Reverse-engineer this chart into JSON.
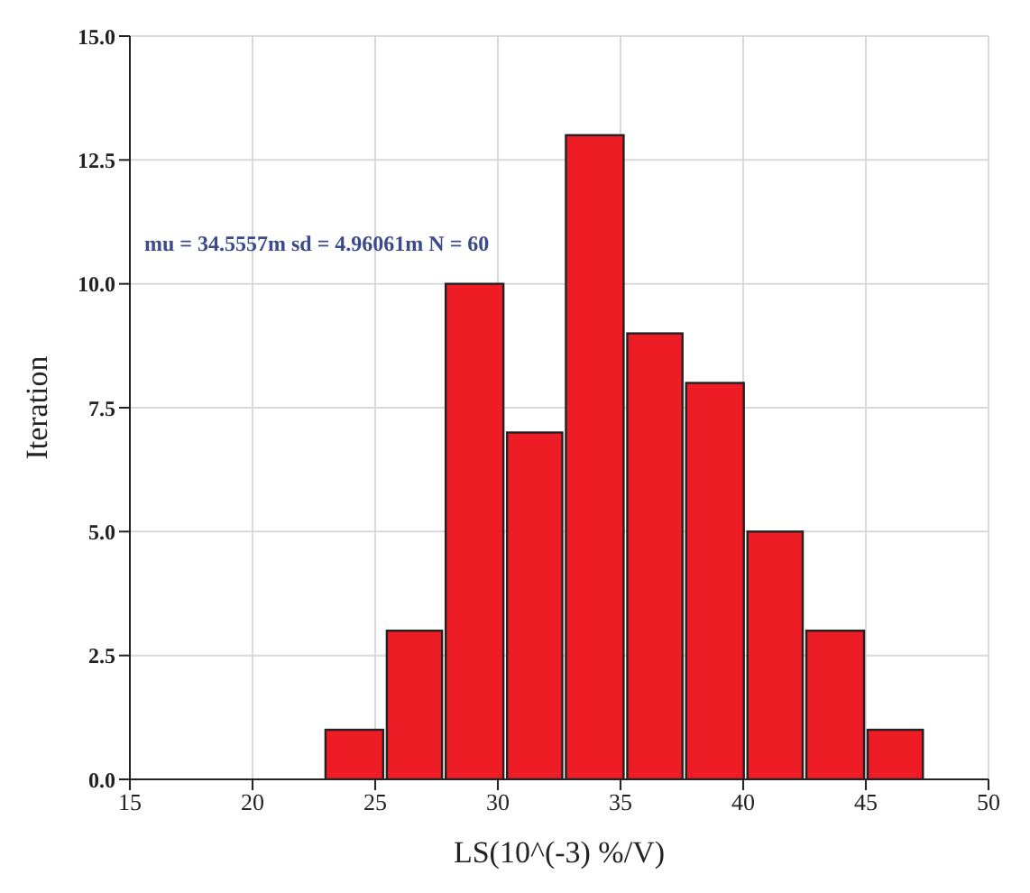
{
  "chart_data": {
    "type": "histogram",
    "xlabel": "LS(10^(-3)  %/V)",
    "ylabel": "Iteration",
    "bins": [
      22.9,
      25.4,
      27.8,
      30.3,
      32.7,
      35.2,
      37.6,
      40.1,
      42.5,
      45.0,
      47.4
    ],
    "values": [
      1,
      3,
      10,
      7,
      13,
      9,
      8,
      5,
      3,
      1
    ],
    "color": "#ee1c24",
    "xlim": [
      15,
      50
    ],
    "xticks": [
      15,
      20,
      25,
      30,
      35,
      40,
      45,
      50
    ],
    "ylim": [
      0,
      15
    ],
    "yticks": [
      {
        "value": 0,
        "label": "0.0"
      },
      {
        "value": 2.5,
        "label": "2.5"
      },
      {
        "value": 5,
        "label": "5.0"
      },
      {
        "value": 7.5,
        "label": "7.5"
      },
      {
        "value": 10,
        "label": "10.0"
      },
      {
        "value": 12.5,
        "label": "12.5"
      },
      {
        "value": 15,
        "label": "15.0"
      }
    ],
    "grid": true,
    "annotations": [
      "mu = 34.5557m sd = 4.96061m N = 60"
    ]
  }
}
